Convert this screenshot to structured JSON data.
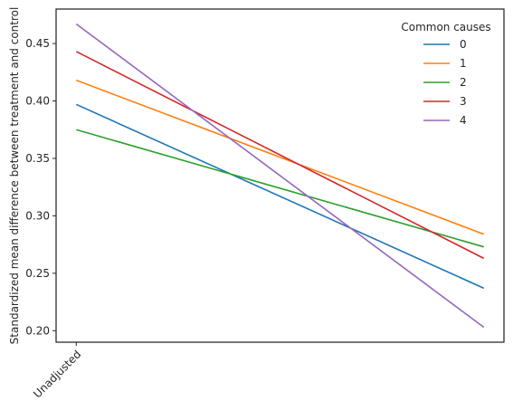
{
  "chart_data": {
    "type": "line",
    "title": "",
    "xlabel": "",
    "ylabel": "Standardized mean difference between treatment and control",
    "x_tick_labels": [
      "Unadjusted"
    ],
    "x_positions": [
      0,
      1
    ],
    "ylim": [
      0.19,
      0.48
    ],
    "y_ticks": [
      0.2,
      0.25,
      0.3,
      0.35,
      0.4,
      0.45
    ],
    "grid": false,
    "legend": {
      "title": "Common causes",
      "placement": "top-right"
    },
    "series": [
      {
        "name": "0",
        "color": "#1f77b4",
        "values": [
          0.397,
          0.237
        ]
      },
      {
        "name": "1",
        "color": "#ff7f0e",
        "values": [
          0.418,
          0.284
        ]
      },
      {
        "name": "2",
        "color": "#2ca02c",
        "values": [
          0.375,
          0.273
        ]
      },
      {
        "name": "3",
        "color": "#d62728",
        "values": [
          0.443,
          0.263
        ]
      },
      {
        "name": "4",
        "color": "#9467bd",
        "values": [
          0.467,
          0.203
        ]
      }
    ]
  }
}
